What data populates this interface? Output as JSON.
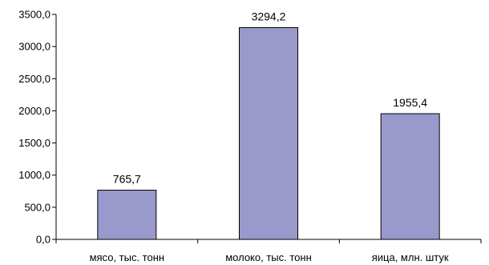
{
  "chart_data": {
    "type": "bar",
    "categories": [
      "мясо, тыс. тонн",
      "молоко, тыс. тонн",
      "яица, млн. штук"
    ],
    "values": [
      765.7,
      3294.2,
      1955.4
    ],
    "data_labels": [
      "765,7",
      "3294,2",
      "1955,4"
    ],
    "ylim": [
      0,
      3500
    ],
    "yticks": [
      0,
      500,
      1000,
      1500,
      2000,
      2500,
      3000,
      3500
    ],
    "ytick_labels": [
      "0,0",
      "500,0",
      "1000,0",
      "1500,0",
      "2000,0",
      "2500,0",
      "3000,0",
      "3500,0"
    ],
    "title": "",
    "xlabel": "",
    "ylabel": "",
    "grid": false,
    "legend": "none",
    "colors": {
      "bar_fill": "#9999CC",
      "bar_stroke": "#000000",
      "axis": "#000000"
    }
  }
}
